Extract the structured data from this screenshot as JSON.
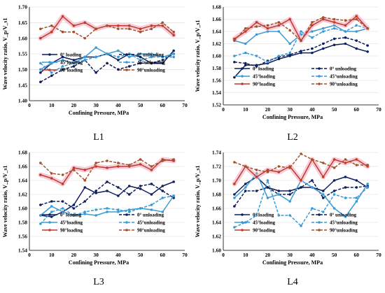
{
  "chart_data": [
    {
      "type": "line",
      "caption": "L1",
      "xlabel": "Confining Pressure, MPa",
      "ylabel": "Wave velocity ratio, V_p/V_s1",
      "xlim": [
        0,
        70
      ],
      "xticks": [
        0,
        10,
        20,
        30,
        40,
        50,
        60,
        70
      ],
      "ylim": [
        1.4,
        1.7
      ],
      "yticks": [
        1.4,
        1.45,
        1.5,
        1.55,
        1.6,
        1.65,
        1.7
      ],
      "ytick_labels": [
        "1.40",
        "1.45",
        "1.50",
        "1.55",
        "1.60",
        "1.65",
        "1.70"
      ],
      "legend_placement": "middle",
      "series": [
        {
          "name": "0°  loading",
          "color": "#0d1f5c",
          "dashed": false,
          "marker": "circle",
          "x": [
            5,
            10,
            15,
            20,
            25,
            30,
            35,
            40,
            45,
            50,
            55,
            60,
            65
          ],
          "y": [
            1.49,
            1.52,
            1.54,
            1.53,
            1.54,
            1.54,
            1.55,
            1.53,
            1.55,
            1.54,
            1.52,
            1.52,
            1.56
          ]
        },
        {
          "name": "0°  unloading",
          "color": "#0d1f5c",
          "dashed": true,
          "marker": "circle",
          "x": [
            5,
            10,
            15,
            20,
            25,
            30,
            35,
            40,
            45,
            50,
            55,
            60,
            65
          ],
          "y": [
            1.46,
            1.48,
            1.5,
            1.51,
            1.53,
            1.49,
            1.52,
            1.5,
            1.51,
            1.52,
            1.52,
            1.53,
            1.55
          ]
        },
        {
          "name": "45°loading",
          "color": "#3a9ad6",
          "dashed": false,
          "marker": "circle",
          "x": [
            5,
            10,
            15,
            20,
            25,
            30,
            35,
            40,
            45,
            50,
            55,
            60,
            65
          ],
          "y": [
            1.5,
            1.52,
            1.53,
            1.52,
            1.54,
            1.57,
            1.55,
            1.56,
            1.54,
            1.55,
            1.55,
            1.54,
            1.55
          ]
        },
        {
          "name": "45°unloading",
          "color": "#3a9ad6",
          "dashed": true,
          "marker": "circle",
          "x": [
            5,
            10,
            15,
            20,
            25,
            30,
            35,
            40,
            45,
            50,
            55,
            60,
            65
          ],
          "y": [
            1.52,
            1.49,
            1.51,
            1.52,
            1.53,
            1.54,
            1.55,
            1.54,
            1.55,
            1.53,
            1.54,
            1.54,
            1.54
          ]
        },
        {
          "name": "90°loading",
          "color": "#c0392b",
          "dashed": false,
          "marker": "circle",
          "x": [
            5,
            10,
            15,
            20,
            25,
            30,
            35,
            40,
            45,
            50,
            55,
            60,
            65
          ],
          "y": [
            1.6,
            1.62,
            1.67,
            1.64,
            1.65,
            1.63,
            1.64,
            1.64,
            1.64,
            1.63,
            1.64,
            1.64,
            1.61
          ]
        },
        {
          "name": "90°unloading",
          "color": "#a0522d",
          "dashed": true,
          "marker": "circle",
          "x": [
            5,
            10,
            15,
            20,
            25,
            30,
            35,
            40,
            45,
            50,
            55,
            60,
            65
          ],
          "y": [
            1.63,
            1.64,
            1.62,
            1.62,
            1.6,
            1.63,
            1.64,
            1.63,
            1.63,
            1.62,
            1.63,
            1.65,
            1.62
          ]
        }
      ]
    },
    {
      "type": "line",
      "caption": "L2",
      "xlabel": "Confining Pressure, MPa",
      "ylabel": "Wave velocity ratio, V_p/V_s1",
      "xlim": [
        0,
        70
      ],
      "xticks": [
        0,
        10,
        20,
        30,
        40,
        50,
        60,
        70
      ],
      "ylim": [
        1.52,
        1.68
      ],
      "yticks": [
        1.52,
        1.54,
        1.56,
        1.58,
        1.6,
        1.62,
        1.64,
        1.66,
        1.68
      ],
      "ytick_labels": [
        "1.52",
        "1.54",
        "1.56",
        "1.58",
        "1.60",
        "1.62",
        "1.64",
        "1.66",
        "1.68"
      ],
      "legend_placement": "bottom-right",
      "series": [
        {
          "name": "0°  loading",
          "color": "#0d1f5c",
          "dashed": false,
          "marker": "circle",
          "x": [
            5,
            10,
            15,
            20,
            25,
            30,
            35,
            40,
            45,
            50,
            55,
            60,
            65
          ],
          "y": [
            1.565,
            1.585,
            1.585,
            1.588,
            1.595,
            1.6,
            1.605,
            1.605,
            1.612,
            1.618,
            1.62,
            1.612,
            1.607
          ]
        },
        {
          "name": "0°  unloading",
          "color": "#0d1f5c",
          "dashed": true,
          "marker": "circle",
          "x": [
            5,
            10,
            15,
            20,
            25,
            30,
            35,
            40,
            45,
            50,
            55,
            60,
            65
          ],
          "y": [
            1.59,
            1.588,
            1.583,
            1.592,
            1.598,
            1.602,
            1.608,
            1.612,
            1.62,
            1.628,
            1.63,
            1.625,
            1.617
          ]
        },
        {
          "name": "45°loading",
          "color": "#3a9ad6",
          "dashed": false,
          "marker": "circle",
          "x": [
            5,
            10,
            15,
            20,
            25,
            30,
            35,
            40,
            45,
            50,
            55,
            60,
            65
          ],
          "y": [
            1.625,
            1.62,
            1.635,
            1.64,
            1.64,
            1.62,
            1.635,
            1.64,
            1.645,
            1.65,
            1.64,
            1.64,
            1.645
          ]
        },
        {
          "name": "45°unloading",
          "color": "#3a9ad6",
          "dashed": true,
          "marker": "circle",
          "x": [
            5,
            10,
            15,
            20,
            25,
            30,
            35,
            40,
            45,
            50,
            55,
            60,
            65
          ],
          "y": [
            1.6,
            1.605,
            1.6,
            1.59,
            1.6,
            1.605,
            1.64,
            1.63,
            1.64,
            1.645,
            1.64,
            1.65,
            1.645
          ]
        },
        {
          "name": "90°loading",
          "color": "#c0392b",
          "dashed": false,
          "marker": "circle",
          "x": [
            5,
            10,
            15,
            20,
            25,
            30,
            35,
            40,
            45,
            50,
            55,
            60,
            65
          ],
          "y": [
            1.628,
            1.64,
            1.655,
            1.645,
            1.65,
            1.66,
            1.625,
            1.65,
            1.66,
            1.655,
            1.65,
            1.665,
            1.645
          ]
        },
        {
          "name": "90°unloading",
          "color": "#a0522d",
          "dashed": true,
          "marker": "circle",
          "x": [
            5,
            10,
            15,
            20,
            25,
            30,
            35,
            40,
            45,
            50,
            55,
            60,
            65
          ],
          "y": [
            1.625,
            1.645,
            1.648,
            1.65,
            1.655,
            1.642,
            1.625,
            1.655,
            1.663,
            1.66,
            1.658,
            1.66,
            1.645
          ]
        }
      ]
    },
    {
      "type": "line",
      "caption": "L3",
      "xlabel": "Confining Pressure, MPa",
      "ylabel": "Wave velocity ratio, V_p/V_s1",
      "xlim": [
        0,
        70
      ],
      "xticks": [
        0,
        10,
        20,
        30,
        40,
        50,
        60,
        70
      ],
      "ylim": [
        1.54,
        1.68
      ],
      "yticks": [
        1.54,
        1.56,
        1.58,
        1.6,
        1.62,
        1.64,
        1.66,
        1.68
      ],
      "ytick_labels": [
        "1.54",
        "1.56",
        "1.58",
        "1.60",
        "1.62",
        "1.64",
        "1.66",
        "1.68"
      ],
      "legend_placement": "bottom-right",
      "series": [
        {
          "name": "0°  loading",
          "color": "#0d1f5c",
          "dashed": false,
          "marker": "circle",
          "x": [
            5,
            10,
            15,
            20,
            25,
            30,
            35,
            40,
            45,
            50,
            55,
            60,
            65
          ],
          "y": [
            1.59,
            1.588,
            1.595,
            1.605,
            1.63,
            1.622,
            1.625,
            1.618,
            1.632,
            1.628,
            1.62,
            1.632,
            1.638
          ]
        },
        {
          "name": "0°  unloading",
          "color": "#0d1f5c",
          "dashed": true,
          "marker": "circle",
          "x": [
            5,
            10,
            15,
            20,
            25,
            30,
            35,
            40,
            45,
            50,
            55,
            60,
            65
          ],
          "y": [
            1.605,
            1.61,
            1.61,
            1.6,
            1.61,
            1.625,
            1.638,
            1.63,
            1.62,
            1.632,
            1.635,
            1.625,
            1.615
          ]
        },
        {
          "name": "45°loading",
          "color": "#3a9ad6",
          "dashed": false,
          "marker": "circle",
          "x": [
            5,
            10,
            15,
            20,
            25,
            30,
            35,
            40,
            45,
            50,
            55,
            60,
            65
          ],
          "y": [
            1.59,
            1.603,
            1.595,
            1.59,
            1.592,
            1.59,
            1.595,
            1.595,
            1.598,
            1.6,
            1.598,
            1.595,
            1.618
          ]
        },
        {
          "name": "45°unloading",
          "color": "#3a9ad6",
          "dashed": true,
          "marker": "circle",
          "x": [
            5,
            10,
            15,
            20,
            25,
            30,
            35,
            40,
            45,
            50,
            55,
            60,
            65
          ],
          "y": [
            1.578,
            1.595,
            1.6,
            1.59,
            1.595,
            1.598,
            1.6,
            1.598,
            1.595,
            1.6,
            1.605,
            1.615,
            1.618
          ]
        },
        {
          "name": "90°loading",
          "color": "#c0392b",
          "dashed": false,
          "marker": "circle",
          "x": [
            5,
            10,
            15,
            20,
            25,
            30,
            35,
            40,
            45,
            50,
            55,
            60,
            65
          ],
          "y": [
            1.648,
            1.643,
            1.635,
            1.658,
            1.655,
            1.66,
            1.658,
            1.66,
            1.66,
            1.663,
            1.655,
            1.67,
            1.668
          ]
        },
        {
          "name": "90°unloading",
          "color": "#a0522d",
          "dashed": true,
          "marker": "circle",
          "x": [
            5,
            10,
            15,
            20,
            25,
            30,
            35,
            40,
            45,
            50,
            55,
            60,
            65
          ],
          "y": [
            1.665,
            1.65,
            1.648,
            1.655,
            1.64,
            1.665,
            1.668,
            1.665,
            1.662,
            1.67,
            1.66,
            1.668,
            1.67
          ]
        }
      ]
    },
    {
      "type": "line",
      "caption": "L4",
      "xlabel": "Confining Pressure, MPa",
      "ylabel": "Wave velocity ratio, V_p/V_s1",
      "xlim": [
        0,
        70
      ],
      "xticks": [
        0,
        10,
        20,
        30,
        40,
        50,
        60,
        70
      ],
      "ylim": [
        1.6,
        1.74
      ],
      "yticks": [
        1.6,
        1.62,
        1.64,
        1.66,
        1.68,
        1.7,
        1.72,
        1.74
      ],
      "ytick_labels": [
        "1.60",
        "1.62",
        "1.64",
        "1.66",
        "1.68",
        "1.70",
        "1.72",
        "1.74"
      ],
      "legend_placement": "bottom-right",
      "series": [
        {
          "name": "0°  loading",
          "color": "#0d1f5c",
          "dashed": false,
          "marker": "circle",
          "x": [
            5,
            10,
            15,
            20,
            25,
            30,
            35,
            40,
            45,
            50,
            55,
            60,
            65
          ],
          "y": [
            1.68,
            1.695,
            1.705,
            1.69,
            1.685,
            1.685,
            1.69,
            1.69,
            1.685,
            1.7,
            1.705,
            1.7,
            1.69
          ]
        },
        {
          "name": "0°  unloading",
          "color": "#0d1f5c",
          "dashed": true,
          "marker": "circle",
          "x": [
            5,
            10,
            15,
            20,
            25,
            30,
            35,
            40,
            45,
            50,
            55,
            60,
            65
          ],
          "y": [
            1.663,
            1.685,
            1.685,
            1.69,
            1.68,
            1.68,
            1.69,
            1.7,
            1.675,
            1.685,
            1.69,
            1.69,
            1.692
          ]
        },
        {
          "name": "45°loading",
          "color": "#3a9ad6",
          "dashed": false,
          "marker": "circle",
          "x": [
            5,
            10,
            15,
            20,
            25,
            30,
            35,
            40,
            45,
            50,
            55,
            60,
            65
          ],
          "y": [
            1.675,
            1.69,
            1.71,
            1.675,
            1.68,
            1.67,
            1.7,
            1.69,
            1.68,
            1.66,
            1.648,
            1.67,
            1.695
          ]
        },
        {
          "name": "45°unloading",
          "color": "#3a9ad6",
          "dashed": true,
          "marker": "circle",
          "x": [
            5,
            10,
            15,
            20,
            25,
            30,
            35,
            40,
            45,
            50,
            55,
            60,
            65
          ],
          "y": [
            1.633,
            1.64,
            1.65,
            1.7,
            1.65,
            1.65,
            1.635,
            1.66,
            1.655,
            1.68,
            1.675,
            1.675,
            1.69
          ]
        },
        {
          "name": "90°loading",
          "color": "#c0392b",
          "dashed": false,
          "marker": "circle",
          "x": [
            5,
            10,
            15,
            20,
            25,
            30,
            35,
            40,
            45,
            50,
            55,
            60,
            65
          ],
          "y": [
            1.695,
            1.72,
            1.705,
            1.715,
            1.712,
            1.72,
            1.7,
            1.73,
            1.705,
            1.73,
            1.725,
            1.73,
            1.72
          ]
        },
        {
          "name": "90°unloading",
          "color": "#a0522d",
          "dashed": true,
          "marker": "circle",
          "x": [
            5,
            10,
            15,
            20,
            25,
            30,
            35,
            40,
            45,
            50,
            55,
            60,
            65
          ],
          "y": [
            1.726,
            1.72,
            1.715,
            1.712,
            1.72,
            1.718,
            1.738,
            1.73,
            1.725,
            1.718,
            1.73,
            1.722,
            1.722
          ]
        }
      ]
    }
  ]
}
